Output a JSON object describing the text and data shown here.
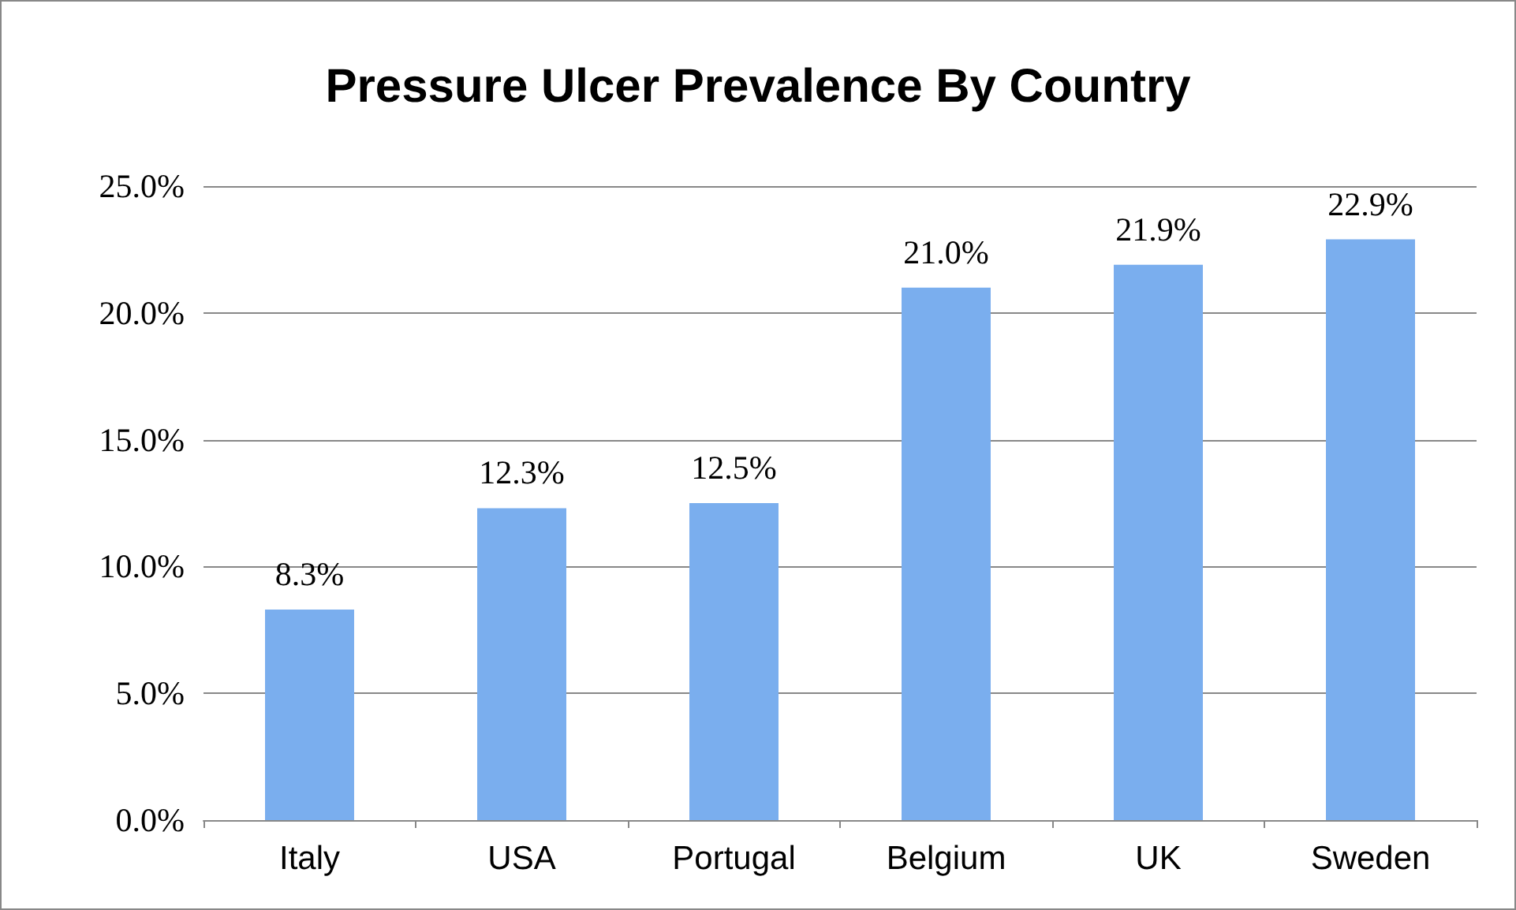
{
  "chart_data": {
    "type": "bar",
    "title": "Pressure Ulcer Prevalence By Country",
    "categories": [
      "Italy",
      "USA",
      "Portugal",
      "Belgium",
      "UK",
      "Sweden"
    ],
    "values": [
      8.3,
      12.3,
      12.5,
      21.0,
      21.9,
      22.9
    ],
    "value_labels": [
      "8.3%",
      "12.3%",
      "12.5%",
      "21.0%",
      "21.9%",
      "22.9%"
    ],
    "color": "#7aaeee",
    "ylim": [
      0,
      25
    ],
    "yticks": [
      {
        "value": 0,
        "label": "0.0%"
      },
      {
        "value": 5,
        "label": "5.0%"
      },
      {
        "value": 10,
        "label": "10.0%"
      },
      {
        "value": 15,
        "label": "15.0%"
      },
      {
        "value": 20,
        "label": "20.0%"
      },
      {
        "value": 25,
        "label": "25.0%"
      }
    ],
    "grid": "y"
  }
}
